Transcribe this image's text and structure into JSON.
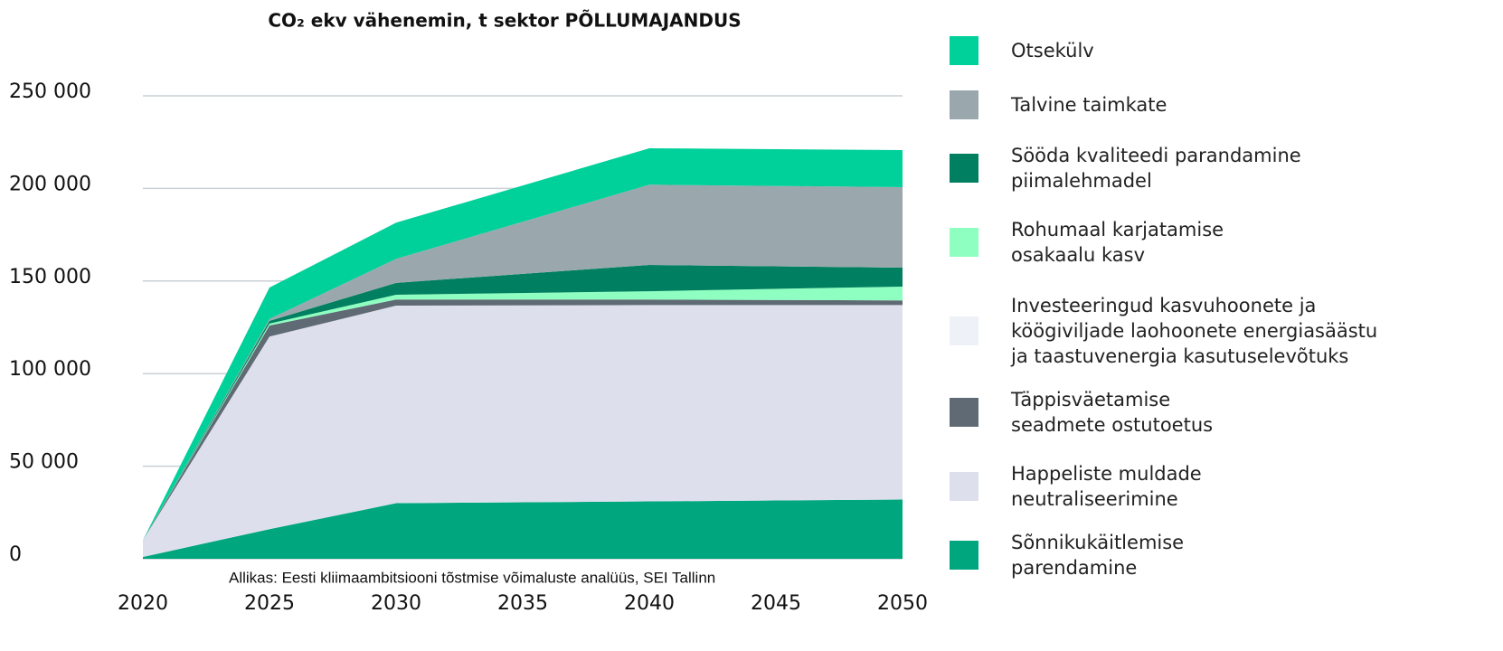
{
  "chart_data": {
    "type": "stacked-area",
    "title": "CO₂ ekv vähenemin, t sektor PÕLLUMAJANDUS",
    "source": "Allikas: Eesti kliimaambitsiooni tõstmise võimaluste analüüs, SEI Tallinn",
    "x": [
      2020,
      2025,
      2030,
      2040,
      2050
    ],
    "xlim": [
      2020,
      2050
    ],
    "xticks": [
      2020,
      2025,
      2030,
      2035,
      2040,
      2045,
      2050
    ],
    "ylim": [
      0,
      250000
    ],
    "yticks": [
      0,
      {
        "value": 50000,
        "label": "50 000"
      },
      {
        "value": 100000,
        "label": "100 000"
      },
      {
        "value": 150000,
        "label": "150 000"
      },
      {
        "value": 200000,
        "label": "200 000"
      },
      {
        "value": 250000,
        "label": "250 000"
      }
    ],
    "grid": true,
    "legend": "right",
    "series": [
      {
        "name": "Sõnnikukäitlemise\nparendamine",
        "color": "#00a67e",
        "values": [
          1000,
          16000,
          30000,
          31000,
          32000
        ]
      },
      {
        "name": "Happeliste muldade\nneutraliseerimine",
        "color": "#dde0ec",
        "values": [
          9000,
          104000,
          106700,
          106000,
          105000
        ]
      },
      {
        "name": "Täppisväetamise\nseadmete ostutoetus",
        "color": "#606a75",
        "values": [
          0,
          6000,
          3300,
          3000,
          2500
        ]
      },
      {
        "name": "Investeeringud kasvuhoonete ja\nköögiviljade laohoonete energiasäästu\nja taastuvenergia kasutuselevõtuks",
        "color": "#eef1f8",
        "values": [
          0,
          0,
          0,
          0,
          0
        ]
      },
      {
        "name": "Rohumaal karjatamise\nosakaalu kasv",
        "color": "#8effc0",
        "values": [
          0,
          1000,
          2600,
          4500,
          7500
        ]
      },
      {
        "name": "Sööda kvaliteedi parandamine\npiimalehmadel",
        "color": "#008060",
        "values": [
          0,
          1500,
          6400,
          14200,
          10200
        ]
      },
      {
        "name": "Talvine taimkate",
        "color": "#9aa8ad",
        "values": [
          0,
          1000,
          13000,
          43300,
          43500
        ]
      },
      {
        "name": "Otsekülv",
        "color": "#00d09a",
        "values": [
          0,
          17000,
          19500,
          19700,
          20000
        ]
      }
    ]
  }
}
